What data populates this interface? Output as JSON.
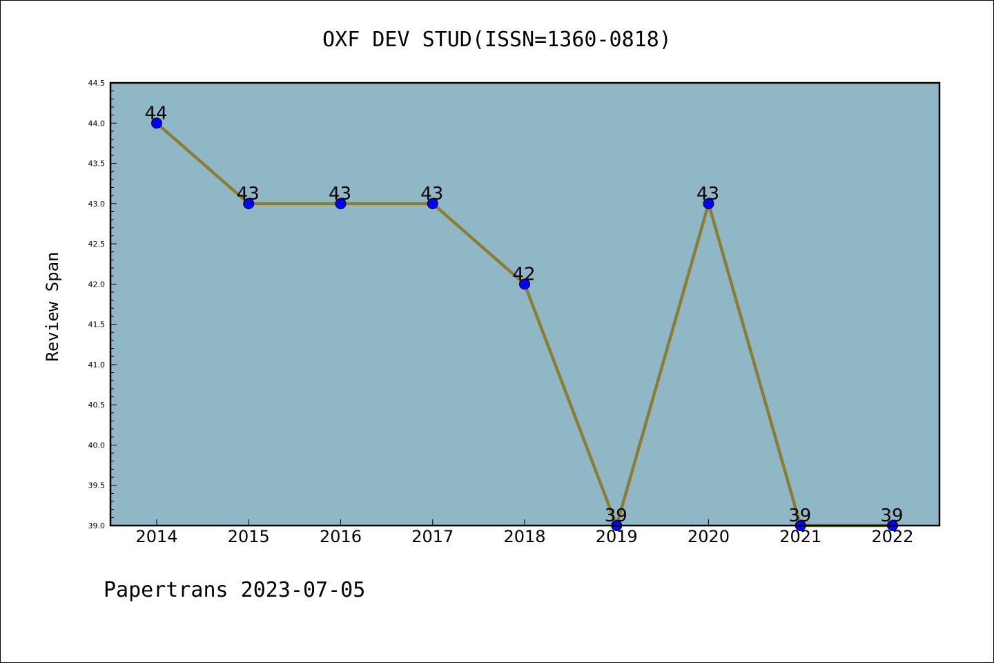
{
  "chart_data": {
    "type": "line",
    "title": "OXF DEV STUD(ISSN=1360-0818)",
    "xlabel": "",
    "ylabel": "Review Span",
    "categories": [
      "2014",
      "2015",
      "2016",
      "2017",
      "2018",
      "2019",
      "2020",
      "2021",
      "2022"
    ],
    "series": [
      {
        "values": [
          44,
          43,
          43,
          43,
          42,
          39,
          43,
          39,
          39
        ]
      }
    ],
    "data_labels": [
      "44",
      "43",
      "43",
      "43",
      "42",
      "39",
      "43",
      "39",
      "39"
    ],
    "ylim": [
      39.0,
      44.5
    ],
    "y_ticks": [
      "39.0",
      "39.5",
      "40.0",
      "40.5",
      "41.0",
      "41.5",
      "42.0",
      "42.5",
      "43.0",
      "43.5",
      "44.0",
      "44.5"
    ],
    "grid": false,
    "legend": "none",
    "colors": {
      "plot_background": "#8fb7c6",
      "line": "#8b7d33",
      "marker": "#0000ff"
    }
  },
  "footer": {
    "text": "Papertrans 2023-07-05"
  }
}
